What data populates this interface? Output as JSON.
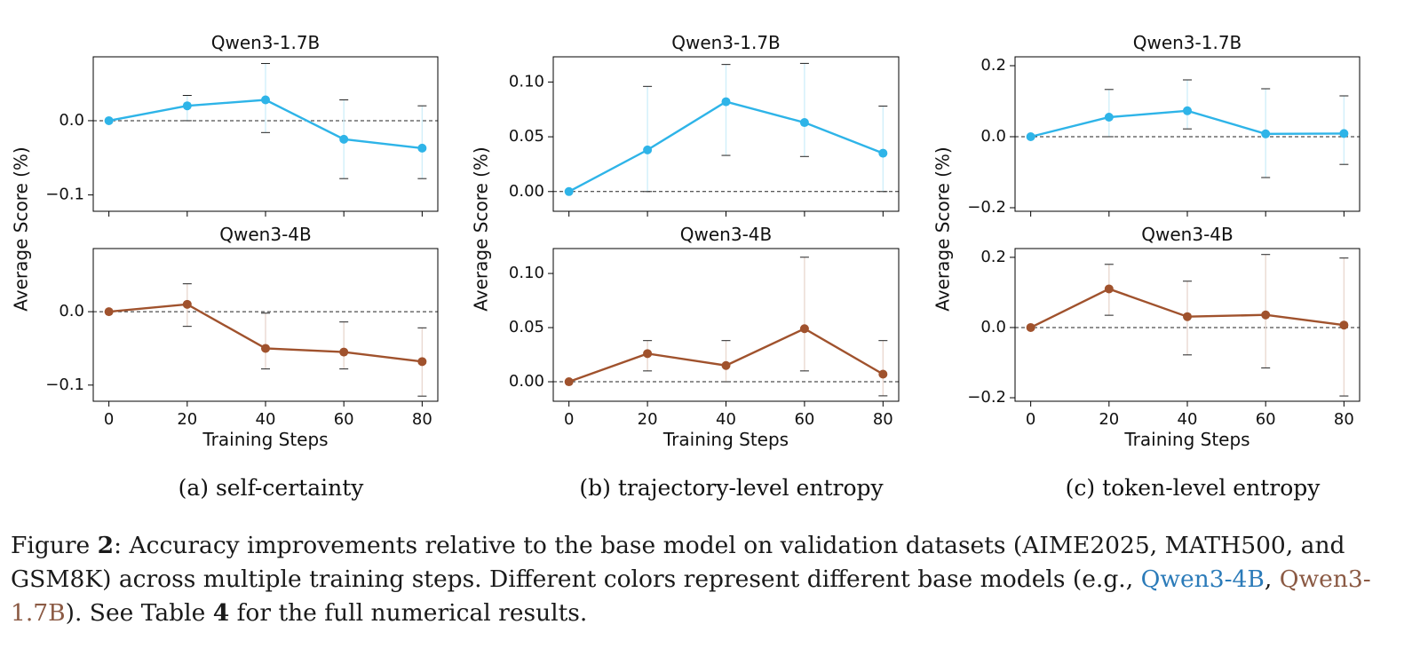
{
  "chart_data": [
    {
      "type": "line",
      "id": "a",
      "panel_caption": "(a) self-certainty",
      "ylabel": "Average Score (%)",
      "xlabel": "Training Steps",
      "subplots": [
        {
          "title": "Qwen3-1.7B",
          "color": "#2eb4e8",
          "x": [
            0,
            20,
            40,
            60,
            80
          ],
          "y": [
            0.0,
            0.02,
            0.028,
            -0.025,
            -0.037
          ],
          "err_low": [
            0.0,
            0.0,
            -0.016,
            -0.078,
            -0.078
          ],
          "err_high": [
            0.0,
            0.034,
            0.077,
            0.028,
            0.02
          ],
          "ylim": [
            -0.122,
            0.086
          ],
          "yticks": [
            0.0,
            -0.1
          ],
          "ytick_labels": [
            "0.0",
            "−0.1"
          ],
          "xticks": [
            0,
            20,
            40,
            60,
            80
          ],
          "xtick_labels": [
            "0",
            "20",
            "40",
            "60",
            "80"
          ]
        },
        {
          "title": "Qwen3-4B",
          "color": "#a0522d",
          "x": [
            0,
            20,
            40,
            60,
            80
          ],
          "y": [
            0.0,
            0.01,
            -0.05,
            -0.055,
            -0.068
          ],
          "err_low": [
            0.0,
            -0.02,
            -0.078,
            -0.078,
            -0.115
          ],
          "err_high": [
            0.0,
            0.038,
            -0.002,
            -0.014,
            -0.022
          ],
          "ylim": [
            -0.122,
            0.086
          ],
          "yticks": [
            0.0,
            -0.1
          ],
          "ytick_labels": [
            "0.0",
            "−0.1"
          ],
          "xticks": [
            0,
            20,
            40,
            60,
            80
          ],
          "xtick_labels": [
            "0",
            "20",
            "40",
            "60",
            "80"
          ]
        }
      ]
    },
    {
      "type": "line",
      "id": "b",
      "panel_caption": "(b) trajectory-level entropy",
      "ylabel": "Average Score (%)",
      "xlabel": "Training Steps",
      "subplots": [
        {
          "title": "Qwen3-1.7B",
          "color": "#2eb4e8",
          "x": [
            0,
            20,
            40,
            60,
            80
          ],
          "y": [
            0.0,
            0.038,
            0.082,
            0.063,
            0.035
          ],
          "err_low": [
            0.0,
            0.0,
            0.033,
            0.032,
            0.0
          ],
          "err_high": [
            0.0,
            0.096,
            0.116,
            0.117,
            0.078
          ],
          "ylim": [
            -0.018,
            0.123
          ],
          "yticks": [
            0.0,
            0.05,
            0.1
          ],
          "ytick_labels": [
            "0.00",
            "0.05",
            "0.10"
          ],
          "xticks": [
            0,
            20,
            40,
            60,
            80
          ],
          "xtick_labels": [
            "0",
            "20",
            "40",
            "60",
            "80"
          ]
        },
        {
          "title": "Qwen3-4B",
          "color": "#a0522d",
          "x": [
            0,
            20,
            40,
            60,
            80
          ],
          "y": [
            0.0,
            0.026,
            0.015,
            0.049,
            0.007
          ],
          "err_low": [
            0.0,
            0.01,
            0.0,
            0.01,
            -0.013
          ],
          "err_high": [
            0.0,
            0.038,
            0.038,
            0.115,
            0.038
          ],
          "ylim": [
            -0.018,
            0.123
          ],
          "yticks": [
            0.0,
            0.05,
            0.1
          ],
          "ytick_labels": [
            "0.00",
            "0.05",
            "0.10"
          ],
          "xticks": [
            0,
            20,
            40,
            60,
            80
          ],
          "xtick_labels": [
            "0",
            "20",
            "40",
            "60",
            "80"
          ]
        }
      ]
    },
    {
      "type": "line",
      "id": "c",
      "panel_caption": "(c) token-level entropy",
      "ylabel": "Average Score (%)",
      "xlabel": "Training Steps",
      "subplots": [
        {
          "title": "Qwen3-1.7B",
          "color": "#2eb4e8",
          "x": [
            0,
            20,
            40,
            60,
            80
          ],
          "y": [
            0.0,
            0.055,
            0.073,
            0.008,
            0.009
          ],
          "err_low": [
            0.0,
            0.0,
            0.022,
            -0.115,
            -0.078
          ],
          "err_high": [
            0.0,
            0.133,
            0.16,
            0.135,
            0.115
          ],
          "ylim": [
            -0.21,
            0.225
          ],
          "yticks": [
            0.2,
            0.0,
            -0.2
          ],
          "ytick_labels": [
            "0.2",
            "0.0",
            "−0.2"
          ],
          "xticks": [
            0,
            20,
            40,
            60,
            80
          ],
          "xtick_labels": [
            "0",
            "20",
            "40",
            "60",
            "80"
          ]
        },
        {
          "title": "Qwen3-4B",
          "color": "#a0522d",
          "x": [
            0,
            20,
            40,
            60,
            80
          ],
          "y": [
            0.0,
            0.11,
            0.031,
            0.036,
            0.007
          ],
          "err_low": [
            0.0,
            0.035,
            -0.078,
            -0.115,
            -0.195
          ],
          "err_high": [
            0.0,
            0.18,
            0.132,
            0.208,
            0.198
          ],
          "ylim": [
            -0.21,
            0.225
          ],
          "yticks": [
            0.2,
            0.0,
            -0.2
          ],
          "ytick_labels": [
            "0.2",
            "0.0",
            "−0.2"
          ],
          "xticks": [
            0,
            20,
            40,
            60,
            80
          ],
          "xtick_labels": [
            "0",
            "20",
            "40",
            "60",
            "80"
          ]
        }
      ]
    }
  ],
  "caption": {
    "prefix": "Figure ",
    "fig_num": "2",
    "text_1": ": Accuracy improvements relative to the base model on validation datasets (AIME2025, MATH500, and GSM8K) across multiple training steps. Different colors represent different base models (e.g., ",
    "link_1": "Qwen3-4B",
    "text_2": ", ",
    "link_2": "Qwen3-1.7B",
    "text_3": "). See Table ",
    "table_num": "4",
    "text_4": " for the full numerical results."
  }
}
